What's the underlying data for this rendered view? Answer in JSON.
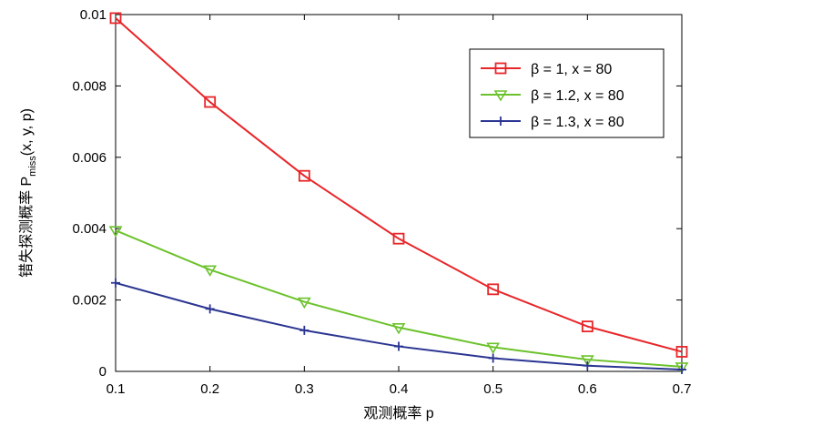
{
  "chart_data": {
    "type": "line",
    "title": "",
    "xlabel": "观测概率  p",
    "ylabel_main": "错失探测概率 P",
    "ylabel_sub": "miss",
    "ylabel_tail": "(x, y, p)",
    "xlim": [
      0.1,
      0.7
    ],
    "ylim": [
      0,
      0.01
    ],
    "xticks": [
      0.1,
      0.2,
      0.3,
      0.4,
      0.5,
      0.6,
      0.7
    ],
    "xtick_labels": [
      "0.1",
      "0.2",
      "0.3",
      "0.4",
      "0.5",
      "0.6",
      "0.7"
    ],
    "yticks": [
      0,
      0.002,
      0.004,
      0.006,
      0.008,
      0.01
    ],
    "ytick_labels": [
      "0",
      "0.002",
      "0.004",
      "0.006",
      "0.008",
      "0.01"
    ],
    "grid": false,
    "legend_position": "top-right",
    "x": [
      0.1,
      0.2,
      0.3,
      0.4,
      0.5,
      0.6,
      0.7
    ],
    "series": [
      {
        "name": "β = 1, x = 80",
        "color": "#e8262a",
        "marker": "square",
        "values": [
          0.0099,
          0.00755,
          0.00548,
          0.00372,
          0.0023,
          0.00126,
          0.00055
        ]
      },
      {
        "name": "β = 1.2, x = 80",
        "color": "#6cc22c",
        "marker": "triangle-down",
        "values": [
          0.00395,
          0.00285,
          0.00195,
          0.00123,
          0.00068,
          0.00033,
          0.00013
        ]
      },
      {
        "name": "β = 1.3, x = 80",
        "color": "#2b3592",
        "marker": "plus",
        "values": [
          0.00248,
          0.00175,
          0.00115,
          0.0007,
          0.00037,
          0.00016,
          5e-05
        ]
      }
    ]
  }
}
